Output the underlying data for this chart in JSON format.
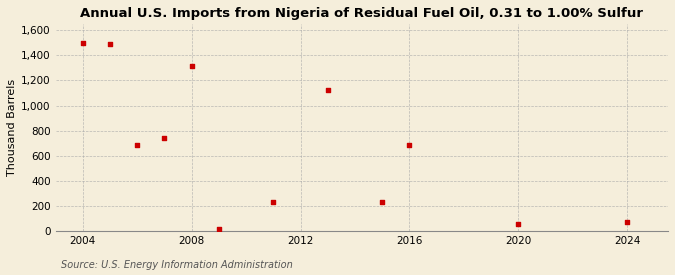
{
  "title": "Annual U.S. Imports from Nigeria of Residual Fuel Oil, 0.31 to 1.00% Sulfur",
  "ylabel": "Thousand Barrels",
  "source": "Source: U.S. Energy Information Administration",
  "background_color": "#f5eedb",
  "plot_bg_color": "#f5eedb",
  "marker_color": "#cc0000",
  "grid_color": "#aaaaaa",
  "spine_color": "#888888",
  "data": [
    {
      "year": 2004,
      "value": 1500
    },
    {
      "year": 2005,
      "value": 1490
    },
    {
      "year": 2006,
      "value": 690
    },
    {
      "year": 2007,
      "value": 740
    },
    {
      "year": 2008,
      "value": 1315
    },
    {
      "year": 2009,
      "value": 20
    },
    {
      "year": 2011,
      "value": 235
    },
    {
      "year": 2013,
      "value": 1120
    },
    {
      "year": 2015,
      "value": 235
    },
    {
      "year": 2016,
      "value": 690
    },
    {
      "year": 2020,
      "value": 55
    },
    {
      "year": 2024,
      "value": 70
    }
  ],
  "xlim": [
    2003.0,
    2025.5
  ],
  "ylim": [
    0,
    1650
  ],
  "yticks": [
    0,
    200,
    400,
    600,
    800,
    1000,
    1200,
    1400,
    1600
  ],
  "xticks": [
    2004,
    2008,
    2012,
    2016,
    2020,
    2024
  ],
  "title_fontsize": 9.5,
  "label_fontsize": 8,
  "tick_fontsize": 7.5,
  "source_fontsize": 7
}
